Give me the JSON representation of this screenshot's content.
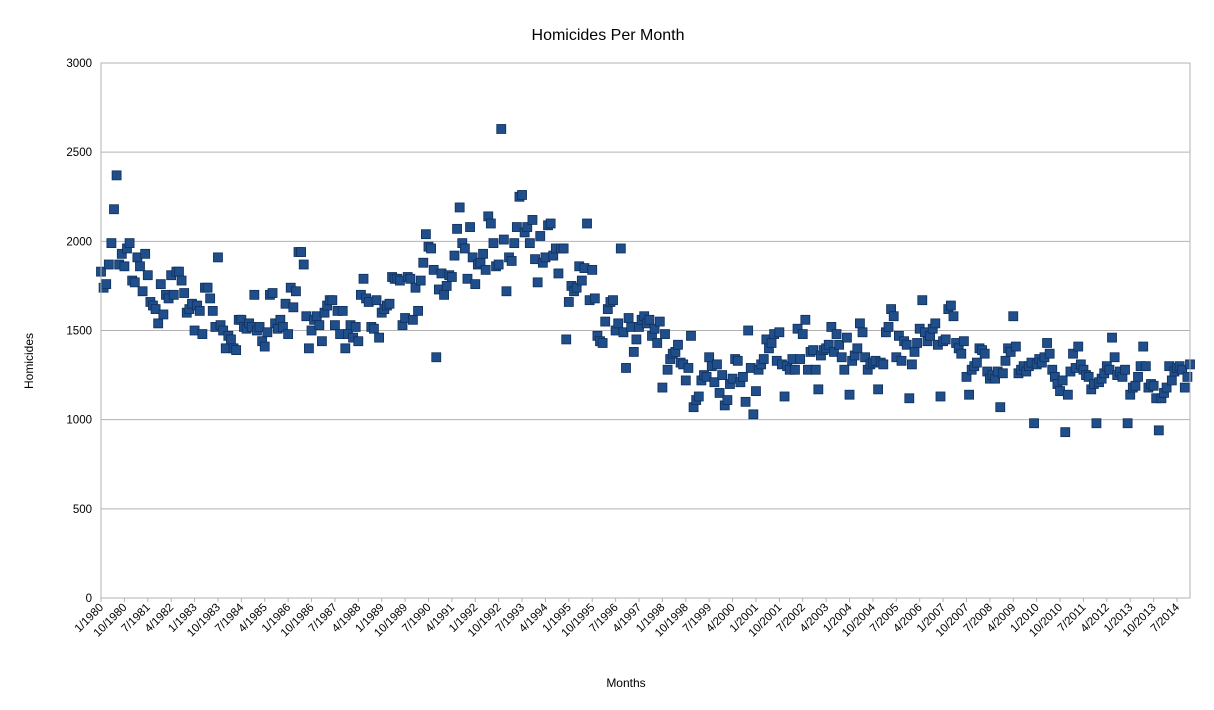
{
  "chart_data": {
    "type": "scatter",
    "title": "Homicides Per Month",
    "xlabel": "Months",
    "ylabel": "Homicides",
    "ylim": [
      0,
      3000
    ],
    "yticks": [
      0,
      500,
      1000,
      1500,
      2000,
      2500,
      3000
    ],
    "grid": "horizontal",
    "legend": "none",
    "marker": "square",
    "marker_color": "#1f4e8a",
    "xlim": [
      "1/1980",
      "12/2014"
    ],
    "xtick_labels": [
      "1/1980",
      "10/1980",
      "7/1981",
      "4/1982",
      "1/1983",
      "10/1983",
      "7/1984",
      "4/1985",
      "1/1986",
      "10/1986",
      "7/1987",
      "4/1988",
      "1/1989",
      "10/1989",
      "7/1990",
      "4/1991",
      "1/1992",
      "10/1992",
      "7/1993",
      "4/1994",
      "1/1995",
      "10/1995",
      "7/1996",
      "4/1997",
      "1/1998",
      "10/1998",
      "7/1999",
      "4/2000",
      "1/2001",
      "10/2001",
      "7/2002",
      "4/2003",
      "1/2004",
      "10/2004",
      "7/2005",
      "4/2006",
      "1/2007",
      "10/2007",
      "7/2008",
      "4/2009",
      "1/2010",
      "10/2010",
      "7/2011",
      "4/2012",
      "1/2013",
      "10/2013",
      "7/2014"
    ],
    "x": [
      "1/1980",
      "2/1980",
      "3/1980",
      "4/1980",
      "5/1980",
      "6/1980",
      "7/1980",
      "8/1980",
      "9/1980",
      "10/1980",
      "11/1980",
      "12/1980",
      "1/1981",
      "2/1981",
      "3/1981",
      "4/1981",
      "5/1981",
      "6/1981",
      "7/1981",
      "8/1981",
      "9/1981",
      "10/1981",
      "11/1981",
      "12/1981",
      "1/1982",
      "2/1982",
      "3/1982",
      "4/1982",
      "5/1982",
      "6/1982",
      "7/1982",
      "8/1982",
      "9/1982",
      "10/1982",
      "11/1982",
      "12/1982",
      "1/1983",
      "2/1983",
      "3/1983",
      "4/1983",
      "5/1983",
      "6/1983",
      "7/1983",
      "8/1983",
      "9/1983",
      "10/1983",
      "11/1983",
      "12/1983",
      "1/1984",
      "2/1984",
      "3/1984",
      "4/1984",
      "5/1984",
      "6/1984",
      "7/1984",
      "8/1984",
      "9/1984",
      "10/1984",
      "11/1984",
      "12/1984",
      "1/1985",
      "2/1985",
      "3/1985",
      "4/1985",
      "5/1985",
      "6/1985",
      "7/1985",
      "8/1985",
      "9/1985",
      "10/1985",
      "11/1985",
      "12/1985",
      "1/1986",
      "2/1986",
      "3/1986",
      "4/1986",
      "5/1986",
      "6/1986",
      "7/1986",
      "8/1986",
      "9/1986",
      "10/1986",
      "11/1986",
      "12/1986",
      "1/1987",
      "2/1987",
      "3/1987",
      "4/1987",
      "5/1987",
      "6/1987",
      "7/1987",
      "8/1987",
      "9/1987",
      "10/1987",
      "11/1987",
      "12/1987",
      "1/1988",
      "2/1988",
      "3/1988",
      "4/1988",
      "5/1988",
      "6/1988",
      "7/1988",
      "8/1988",
      "9/1988",
      "10/1988",
      "11/1988",
      "12/1988",
      "1/1989",
      "2/1989",
      "3/1989",
      "4/1989",
      "5/1989",
      "6/1989",
      "7/1989",
      "8/1989",
      "9/1989",
      "10/1989",
      "11/1989",
      "12/1989",
      "1/1990",
      "2/1990",
      "3/1990",
      "4/1990",
      "5/1990",
      "6/1990",
      "7/1990",
      "8/1990",
      "9/1990",
      "10/1990",
      "11/1990",
      "12/1990",
      "1/1991",
      "2/1991",
      "3/1991",
      "4/1991",
      "5/1991",
      "6/1991",
      "7/1991",
      "8/1991",
      "9/1991",
      "10/1991",
      "11/1991",
      "12/1991",
      "1/1992",
      "2/1992",
      "3/1992",
      "4/1992",
      "5/1992",
      "6/1992",
      "7/1992",
      "8/1992",
      "9/1992",
      "10/1992",
      "11/1992",
      "12/1992",
      "1/1993",
      "2/1993",
      "3/1993",
      "4/1993",
      "5/1993",
      "6/1993",
      "7/1993",
      "8/1993",
      "9/1993",
      "10/1993",
      "11/1993",
      "12/1993",
      "1/1994",
      "2/1994",
      "3/1994",
      "4/1994",
      "5/1994",
      "6/1994",
      "7/1994",
      "8/1994",
      "9/1994",
      "10/1994",
      "11/1994",
      "12/1994",
      "1/1995",
      "2/1995",
      "3/1995",
      "4/1995",
      "5/1995",
      "6/1995",
      "7/1995",
      "8/1995",
      "9/1995",
      "10/1995",
      "11/1995",
      "12/1995",
      "1/1996",
      "2/1996",
      "3/1996",
      "4/1996",
      "5/1996",
      "6/1996",
      "7/1996",
      "8/1996",
      "9/1996",
      "10/1996",
      "11/1996",
      "12/1996",
      "1/1997",
      "2/1997",
      "3/1997",
      "4/1997",
      "5/1997",
      "6/1997",
      "7/1997",
      "8/1997",
      "9/1997",
      "10/1997",
      "11/1997",
      "12/1997",
      "1/1998",
      "2/1998",
      "3/1998",
      "4/1998",
      "5/1998",
      "6/1998",
      "7/1998",
      "8/1998",
      "9/1998",
      "10/1998",
      "11/1998",
      "12/1998",
      "1/1999",
      "2/1999",
      "3/1999",
      "4/1999",
      "5/1999",
      "6/1999",
      "7/1999",
      "8/1999",
      "9/1999",
      "10/1999",
      "11/1999",
      "12/1999",
      "1/2000",
      "2/2000",
      "3/2000",
      "4/2000",
      "5/2000",
      "6/2000",
      "7/2000",
      "8/2000",
      "9/2000",
      "10/2000",
      "11/2000",
      "12/2000",
      "1/2001",
      "2/2001",
      "3/2001",
      "4/2001",
      "5/2001",
      "6/2001",
      "7/2001",
      "8/2001",
      "9/2001",
      "10/2001",
      "11/2001",
      "12/2001",
      "1/2002",
      "2/2002",
      "3/2002",
      "4/2002",
      "5/2002",
      "6/2002",
      "7/2002",
      "8/2002",
      "9/2002",
      "10/2002",
      "11/2002",
      "12/2002",
      "1/2003",
      "2/2003",
      "3/2003",
      "4/2003",
      "5/2003",
      "6/2003",
      "7/2003",
      "8/2003",
      "9/2003",
      "10/2003",
      "11/2003",
      "12/2003",
      "1/2004",
      "2/2004",
      "3/2004",
      "4/2004",
      "5/2004",
      "6/2004",
      "7/2004",
      "8/2004",
      "9/2004",
      "10/2004",
      "11/2004",
      "12/2004",
      "1/2005",
      "2/2005",
      "3/2005",
      "4/2005",
      "5/2005",
      "6/2005",
      "7/2005",
      "8/2005",
      "9/2005",
      "10/2005",
      "11/2005",
      "12/2005",
      "1/2006",
      "2/2006",
      "3/2006",
      "4/2006",
      "5/2006",
      "6/2006",
      "7/2006",
      "8/2006",
      "9/2006",
      "10/2006",
      "11/2006",
      "12/2006",
      "1/2007",
      "2/2007",
      "3/2007",
      "4/2007",
      "5/2007",
      "6/2007",
      "7/2007",
      "8/2007",
      "9/2007",
      "10/2007",
      "11/2007",
      "12/2007",
      "1/2008",
      "2/2008",
      "3/2008",
      "4/2008",
      "5/2008",
      "6/2008",
      "7/2008",
      "8/2008",
      "9/2008",
      "10/2008",
      "11/2008",
      "12/2008",
      "1/2009",
      "2/2009",
      "3/2009",
      "4/2009",
      "5/2009",
      "6/2009",
      "7/2009",
      "8/2009",
      "9/2009",
      "10/2009",
      "11/2009",
      "12/2009",
      "1/2010",
      "2/2010",
      "3/2010",
      "4/2010",
      "5/2010",
      "6/2010",
      "7/2010",
      "8/2010",
      "9/2010",
      "10/2010",
      "11/2010",
      "12/2010",
      "1/2011",
      "2/2011",
      "3/2011",
      "4/2011",
      "5/2011",
      "6/2011",
      "7/2011",
      "8/2011",
      "9/2011",
      "10/2011",
      "11/2011",
      "12/2011",
      "1/2012",
      "2/2012",
      "3/2012",
      "4/2012",
      "5/2012",
      "6/2012",
      "7/2012",
      "8/2012",
      "9/2012",
      "10/2012",
      "11/2012",
      "12/2012",
      "1/2013",
      "2/2013",
      "3/2013",
      "4/2013",
      "5/2013",
      "6/2013",
      "7/2013",
      "8/2013",
      "9/2013",
      "10/2013",
      "11/2013",
      "12/2013",
      "1/2014",
      "2/2014",
      "3/2014",
      "4/2014",
      "5/2014",
      "6/2014",
      "7/2014",
      "8/2014",
      "9/2014",
      "10/2014",
      "11/2014",
      "12/2014"
    ],
    "values": [
      1830,
      1740,
      1760,
      1870,
      1990,
      2180,
      2370,
      1870,
      1930,
      1860,
      1960,
      1990,
      1780,
      1770,
      1910,
      1860,
      1720,
      1930,
      1810,
      1660,
      1640,
      1620,
      1540,
      1760,
      1590,
      1700,
      1680,
      1810,
      1700,
      1830,
      1830,
      1780,
      1710,
      1600,
      1620,
      1650,
      1500,
      1640,
      1610,
      1480,
      1740,
      1740,
      1680,
      1610,
      1520,
      1910,
      1530,
      1500,
      1400,
      1470,
      1450,
      1400,
      1390,
      1560,
      1560,
      1520,
      1510,
      1540,
      1520,
      1700,
      1500,
      1520,
      1440,
      1410,
      1490,
      1700,
      1710,
      1540,
      1510,
      1560,
      1520,
      1650,
      1480,
      1740,
      1630,
      1720,
      1940,
      1940,
      1870,
      1580,
      1400,
      1500,
      1560,
      1580,
      1530,
      1440,
      1600,
      1640,
      1670,
      1670,
      1530,
      1610,
      1480,
      1610,
      1400,
      1480,
      1530,
      1460,
      1520,
      1440,
      1700,
      1790,
      1680,
      1660,
      1520,
      1510,
      1670,
      1460,
      1600,
      1620,
      1640,
      1650,
      1800,
      1790,
      1790,
      1780,
      1530,
      1570,
      1800,
      1790,
      1560,
      1740,
      1610,
      1780,
      1880,
      2040,
      1970,
      1960,
      1840,
      1350,
      1730,
      1820,
      1700,
      1750,
      1810,
      1800,
      1920,
      2070,
      2190,
      1990,
      1960,
      1790,
      2080,
      1910,
      1760,
      1870,
      1880,
      1930,
      1840,
      2140,
      2100,
      1990,
      1860,
      1870,
      2630,
      2010,
      1720,
      1910,
      1890,
      1990,
      2080,
      2250,
      2260,
      2050,
      2080,
      1990,
      2120,
      1900,
      1770,
      2030,
      1880,
      1910,
      2090,
      2100,
      1920,
      1960,
      1820,
      1960,
      1960,
      1450,
      1660,
      1750,
      1720,
      1740,
      1860,
      1780,
      1850,
      2100,
      1670,
      1840,
      1680,
      1470,
      1440,
      1430,
      1550,
      1620,
      1660,
      1670,
      1500,
      1540,
      1960,
      1490,
      1290,
      1570,
      1520,
      1380,
      1450,
      1520,
      1560,
      1580,
      1540,
      1560,
      1470,
      1510,
      1430,
      1550,
      1180,
      1480,
      1280,
      1340,
      1370,
      1380,
      1420,
      1320,
      1310,
      1220,
      1290,
      1470,
      1070,
      1110,
      1130,
      1220,
      1250,
      1240,
      1350,
      1300,
      1210,
      1310,
      1150,
      1250,
      1080,
      1110,
      1200,
      1230,
      1340,
      1330,
      1210,
      1240,
      1100,
      1500,
      1290,
      1030,
      1160,
      1280,
      1310,
      1340,
      1450,
      1400,
      1430,
      1480,
      1330,
      1490,
      1310,
      1130,
      1300,
      1280,
      1340,
      1280,
      1510,
      1340,
      1480,
      1560,
      1280,
      1380,
      1390,
      1280,
      1170,
      1360,
      1390,
      1400,
      1420,
      1520,
      1380,
      1480,
      1420,
      1350,
      1280,
      1460,
      1140,
      1330,
      1360,
      1400,
      1540,
      1490,
      1350,
      1280,
      1310,
      1320,
      1330,
      1170,
      1320,
      1310,
      1490,
      1520,
      1620,
      1580,
      1350,
      1470,
      1330,
      1440,
      1420,
      1120,
      1310,
      1380,
      1430,
      1510,
      1670,
      1490,
      1440,
      1470,
      1510,
      1540,
      1420,
      1130,
      1440,
      1450,
      1620,
      1640,
      1580,
      1430,
      1400,
      1370,
      1440,
      1240,
      1140,
      1280,
      1300,
      1320,
      1400,
      1390,
      1370,
      1270,
      1230,
      1250,
      1230,
      1270,
      1070,
      1260,
      1330,
      1400,
      1380,
      1580,
      1410,
      1260,
      1280,
      1300,
      1270,
      1300,
      1320,
      980,
      1310,
      1340,
      1320,
      1350,
      1430,
      1370,
      1280,
      1240,
      1200,
      1160,
      1220,
      930,
      1140,
      1270,
      1370,
      1290,
      1410,
      1310,
      1280,
      1250,
      1240,
      1170,
      1200,
      980,
      1210,
      1230,
      1260,
      1300,
      1280,
      1460,
      1350,
      1250,
      1270,
      1240,
      1280,
      980,
      1140,
      1180,
      1190,
      1240,
      1300,
      1410,
      1300,
      1180,
      1200,
      1190,
      1120,
      940,
      1120,
      1150,
      1180,
      1300,
      1220,
      1270,
      1290,
      1300,
      1280,
      1180,
      1240,
      1310
    ]
  }
}
